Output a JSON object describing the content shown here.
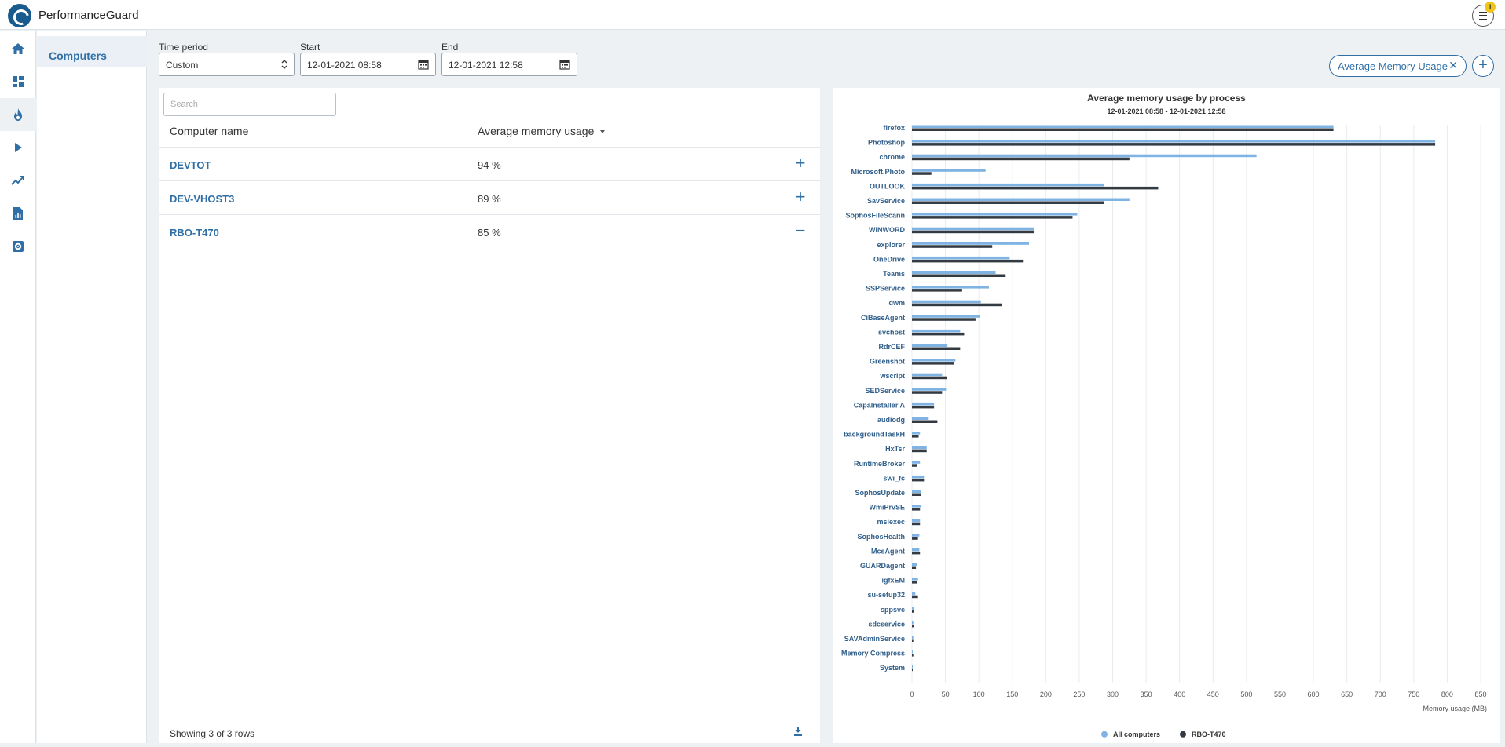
{
  "app": {
    "title": "PerformanceGuard",
    "notification_count": "1"
  },
  "rail": {
    "icons": [
      "home-icon",
      "dashboard-icon",
      "flame-icon",
      "play-icon",
      "trend-icon",
      "report-icon",
      "settings-icon"
    ],
    "active_index": 2
  },
  "subnav": {
    "items": [
      {
        "label": "Computers",
        "active": true
      }
    ]
  },
  "filters": {
    "time_period": {
      "label": "Time period",
      "value": "Custom"
    },
    "start": {
      "label": "Start",
      "value": "12-01-2021 08:58"
    },
    "end": {
      "label": "End",
      "value": "12-01-2021 12:58"
    }
  },
  "metric_chip": {
    "label": "Average Memory Usage"
  },
  "table": {
    "search_placeholder": "Search",
    "columns": [
      "Computer name",
      "Average memory usage"
    ],
    "rows": [
      {
        "name": "DEVTOT",
        "value": "94 %",
        "expanded": false
      },
      {
        "name": "DEV-VHOST3",
        "value": "89 %",
        "expanded": false
      },
      {
        "name": "RBO-T470",
        "value": "85 %",
        "expanded": true
      }
    ],
    "footer": "Showing 3 of 3 rows"
  },
  "colors": {
    "accent": "#2f6fa6",
    "all_computers": "#7eb3e3",
    "selected": "#333a42"
  },
  "chart_data": {
    "type": "bar",
    "orientation": "horizontal",
    "title": "Average memory usage by process",
    "subtitle": "12-01-2021 08:58 - 12-01-2021 12:58",
    "xlabel": "Memory usage (MB)",
    "xlim": [
      0,
      850
    ],
    "xticks": [
      0,
      50,
      100,
      150,
      200,
      250,
      300,
      350,
      400,
      450,
      500,
      550,
      600,
      650,
      700,
      750,
      800,
      850
    ],
    "grid": true,
    "legend_position": "bottom",
    "categories": [
      "firefox",
      "Photoshop",
      "chrome",
      "Microsoft.Photo",
      "OUTLOOK",
      "SavService",
      "SophosFileScann",
      "WINWORD",
      "explorer",
      "OneDrive",
      "Teams",
      "SSPService",
      "dwm",
      "CiBaseAgent",
      "svchost",
      "RdrCEF",
      "Greenshot",
      "wscript",
      "SEDService",
      "CapaInstaller A",
      "audiodg",
      "backgroundTaskH",
      "HxTsr",
      "RuntimeBroker",
      "swi_fc",
      "SophosUpdate",
      "WmiPrvSE",
      "msiexec",
      "SophosHealth",
      "McsAgent",
      "GUARDagent",
      "igfxEM",
      "su-setup32",
      "sppsvc",
      "sdcservice",
      "SAVAdminService",
      "Memory Compress",
      "System"
    ],
    "series": [
      {
        "name": "All computers",
        "color": "#7eb3e3",
        "values": [
          630,
          782,
          515,
          110,
          287,
          325,
          247,
          183,
          175,
          146,
          125,
          115,
          103,
          101,
          72,
          53,
          65,
          45,
          51,
          33,
          25,
          12,
          22,
          12,
          18,
          14,
          14,
          12,
          11,
          11,
          7,
          9,
          5,
          3,
          2,
          2,
          1,
          1
        ]
      },
      {
        "name": "RBO-T470",
        "color": "#333a42",
        "values": [
          630,
          782,
          325,
          29,
          368,
          287,
          240,
          183,
          120,
          167,
          140,
          75,
          135,
          95,
          78,
          72,
          63,
          52,
          45,
          33,
          38,
          10,
          22,
          8,
          18,
          13,
          12,
          12,
          9,
          12,
          6,
          8,
          9,
          3,
          3,
          2,
          2,
          1
        ]
      }
    ]
  }
}
